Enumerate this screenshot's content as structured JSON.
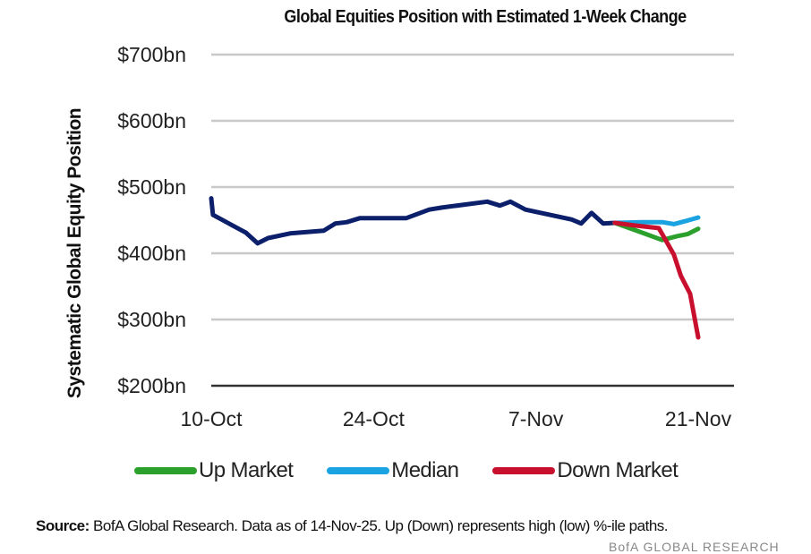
{
  "chart_data": {
    "type": "line",
    "title": "Global Equities Position with Estimated 1-Week Change",
    "xlabel": "",
    "ylabel": "Systematic Global Equity Position",
    "ylim": [
      200,
      700
    ],
    "yticks": [
      200,
      300,
      400,
      500,
      600,
      700
    ],
    "ytick_labels": [
      "$200bn",
      "$300bn",
      "$400bn",
      "$500bn",
      "$600bn",
      "$700bn"
    ],
    "xlim_days": [
      0,
      42
    ],
    "xticks": [
      {
        "day": 0,
        "label": "10-Oct"
      },
      {
        "day": 14,
        "label": "24-Oct"
      },
      {
        "day": 28,
        "label": "7-Nov"
      },
      {
        "day": 42,
        "label": "21-Nov"
      }
    ],
    "grid": "horizontal",
    "legend_position": "bottom",
    "series": [
      {
        "name": "Historical",
        "color": "#0b1f6b",
        "in_legend": false,
        "points": [
          [
            0.0,
            483
          ],
          [
            0.15,
            458
          ],
          [
            3.0,
            431
          ],
          [
            4.0,
            415
          ],
          [
            4.9,
            423
          ],
          [
            6.8,
            430
          ],
          [
            9.7,
            434
          ],
          [
            10.7,
            445
          ],
          [
            11.7,
            447
          ],
          [
            12.8,
            453
          ],
          [
            16.8,
            453
          ],
          [
            18.8,
            466
          ],
          [
            19.9,
            469
          ],
          [
            23.8,
            478
          ],
          [
            24.9,
            472
          ],
          [
            25.8,
            478
          ],
          [
            27.1,
            466
          ],
          [
            31.1,
            451
          ],
          [
            31.9,
            445
          ],
          [
            32.8,
            461
          ],
          [
            33.8,
            445
          ],
          [
            34.8,
            446
          ]
        ]
      },
      {
        "name": "Up Market",
        "color": "#2ca02c",
        "in_legend": true,
        "points": [
          [
            34.8,
            446
          ],
          [
            37.2,
            431
          ],
          [
            38.9,
            420
          ],
          [
            40.2,
            426
          ],
          [
            41.1,
            429
          ],
          [
            42.0,
            437
          ]
        ]
      },
      {
        "name": "Median",
        "color": "#1aa3e0",
        "in_legend": true,
        "points": [
          [
            34.8,
            446
          ],
          [
            37.2,
            447
          ],
          [
            38.9,
            447
          ],
          [
            39.9,
            444
          ],
          [
            41.0,
            449
          ],
          [
            42.0,
            454
          ]
        ]
      },
      {
        "name": "Down Market",
        "color": "#c8102e",
        "in_legend": true,
        "points": [
          [
            34.8,
            446
          ],
          [
            36.5,
            442
          ],
          [
            38.6,
            438
          ],
          [
            39.9,
            398
          ],
          [
            40.5,
            366
          ],
          [
            41.3,
            339
          ],
          [
            42.0,
            273
          ]
        ]
      }
    ]
  },
  "legend": [
    {
      "label": "Up Market",
      "color": "#2ca02c"
    },
    {
      "label": "Median",
      "color": "#1aa3e0"
    },
    {
      "label": "Down Market",
      "color": "#c8102e"
    }
  ],
  "footer": {
    "source_label": "Source:",
    "source_text": " BofA Global Research.  Data as of 14-Nov-25. Up (Down) represents high (low) %-ile paths.",
    "cut_text": "BofA GLOBAL RESEARCH"
  }
}
